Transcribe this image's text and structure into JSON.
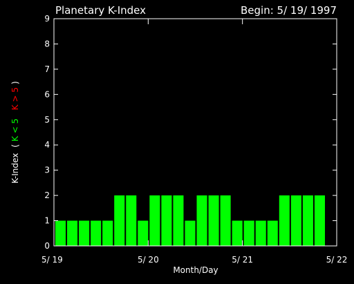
{
  "chart_data": {
    "type": "bar",
    "title": "Planetary K-Index",
    "begin_label": "Begin: 5/ 19/ 1997",
    "xlabel": "Month/Day",
    "ylabel_prefix": "K-Index",
    "ylabel_open": "(",
    "ylabel_green": "K < 5",
    "ylabel_red": "K > 5",
    "ylabel_close": ")",
    "ylim": [
      0,
      9
    ],
    "yticks": [
      "0",
      "1",
      "2",
      "3",
      "4",
      "5",
      "6",
      "7",
      "8",
      "9"
    ],
    "xticks": [
      "5/ 19",
      "5/ 20",
      "5/ 21",
      "5/ 22"
    ],
    "days_span": 3,
    "bars_per_day": 8,
    "values": [
      1,
      1,
      1,
      1,
      1,
      2,
      2,
      1,
      2,
      2,
      2,
      1,
      2,
      2,
      2,
      1,
      1,
      1,
      1,
      2,
      2,
      2,
      2
    ],
    "bar_color": "#00ff00",
    "high_color": "#ff0000",
    "grid": false,
    "legend": "none"
  }
}
